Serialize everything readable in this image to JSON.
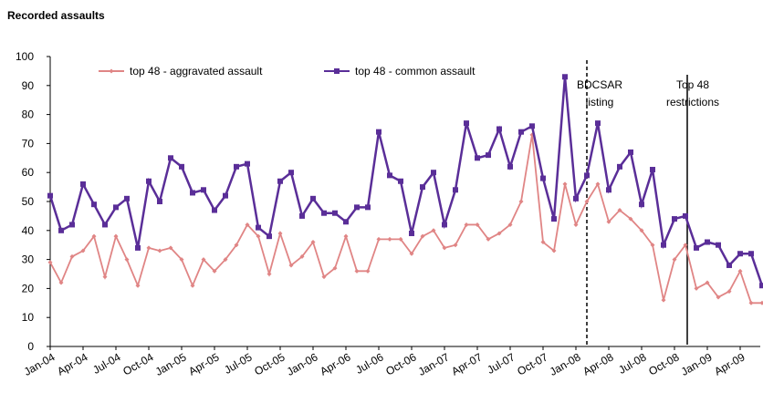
{
  "chart_data": {
    "type": "line",
    "title": "Recorded assaults",
    "categories": [
      "Jan-04",
      null,
      null,
      "Apr-04",
      null,
      null,
      "Jul-04",
      null,
      null,
      "Oct-04",
      null,
      null,
      "Jan-05",
      null,
      null,
      "Apr-05",
      null,
      null,
      "Jul-05",
      null,
      null,
      "Oct-05",
      null,
      null,
      "Jan-06",
      null,
      null,
      "Apr-06",
      null,
      null,
      "Jul-06",
      null,
      null,
      "Oct-06",
      null,
      null,
      "Jan-07",
      null,
      null,
      "Apr-07",
      null,
      null,
      "Jul-07",
      null,
      null,
      "Oct-07",
      null,
      null,
      "Jan-08",
      null,
      null,
      "Apr-08",
      null,
      null,
      "Jul-08",
      null,
      null,
      "Oct-08",
      null,
      null,
      "Jan-09",
      null,
      null,
      "Apr-09",
      null,
      null
    ],
    "series": [
      {
        "name": "top 48 - aggravated assault",
        "color": "#e08585",
        "marker": "diamond",
        "values": [
          29,
          22,
          31,
          33,
          38,
          24,
          38,
          30,
          21,
          34,
          33,
          34,
          30,
          21,
          30,
          26,
          30,
          35,
          42,
          38,
          25,
          39,
          28,
          31,
          36,
          24,
          27,
          38,
          26,
          26,
          37,
          37,
          37,
          32,
          38,
          40,
          34,
          35,
          42,
          42,
          37,
          39,
          42,
          50,
          73,
          36,
          33,
          56,
          42,
          50,
          56,
          43,
          47,
          44,
          40,
          35,
          16,
          30,
          35,
          20,
          22,
          17,
          19,
          26,
          15,
          15
        ]
      },
      {
        "name": "top 48 - common assault",
        "color": "#5a2e98",
        "marker": "square",
        "values": [
          52,
          40,
          42,
          56,
          49,
          42,
          48,
          51,
          34,
          57,
          50,
          65,
          62,
          53,
          54,
          47,
          52,
          62,
          63,
          41,
          38,
          57,
          60,
          45,
          51,
          46,
          46,
          43,
          48,
          48,
          74,
          59,
          57,
          39,
          55,
          60,
          42,
          54,
          77,
          65,
          66,
          75,
          62,
          74,
          76,
          58,
          44,
          93,
          51,
          59,
          77,
          54,
          62,
          67,
          49,
          61,
          35,
          44,
          45,
          34,
          36,
          35,
          28,
          32,
          32,
          21
        ]
      }
    ],
    "annotations": [
      {
        "lines": [
          "BDCSAR",
          "listing"
        ],
        "style": "dashed"
      },
      {
        "lines": [
          "Top 48",
          "restrictions"
        ],
        "style": "solid"
      }
    ],
    "ylim": [
      0,
      100
    ],
    "yticks": [
      0,
      10,
      20,
      30,
      40,
      50,
      60,
      70,
      80,
      90,
      100
    ],
    "grid": false,
    "legend": "top-left"
  }
}
